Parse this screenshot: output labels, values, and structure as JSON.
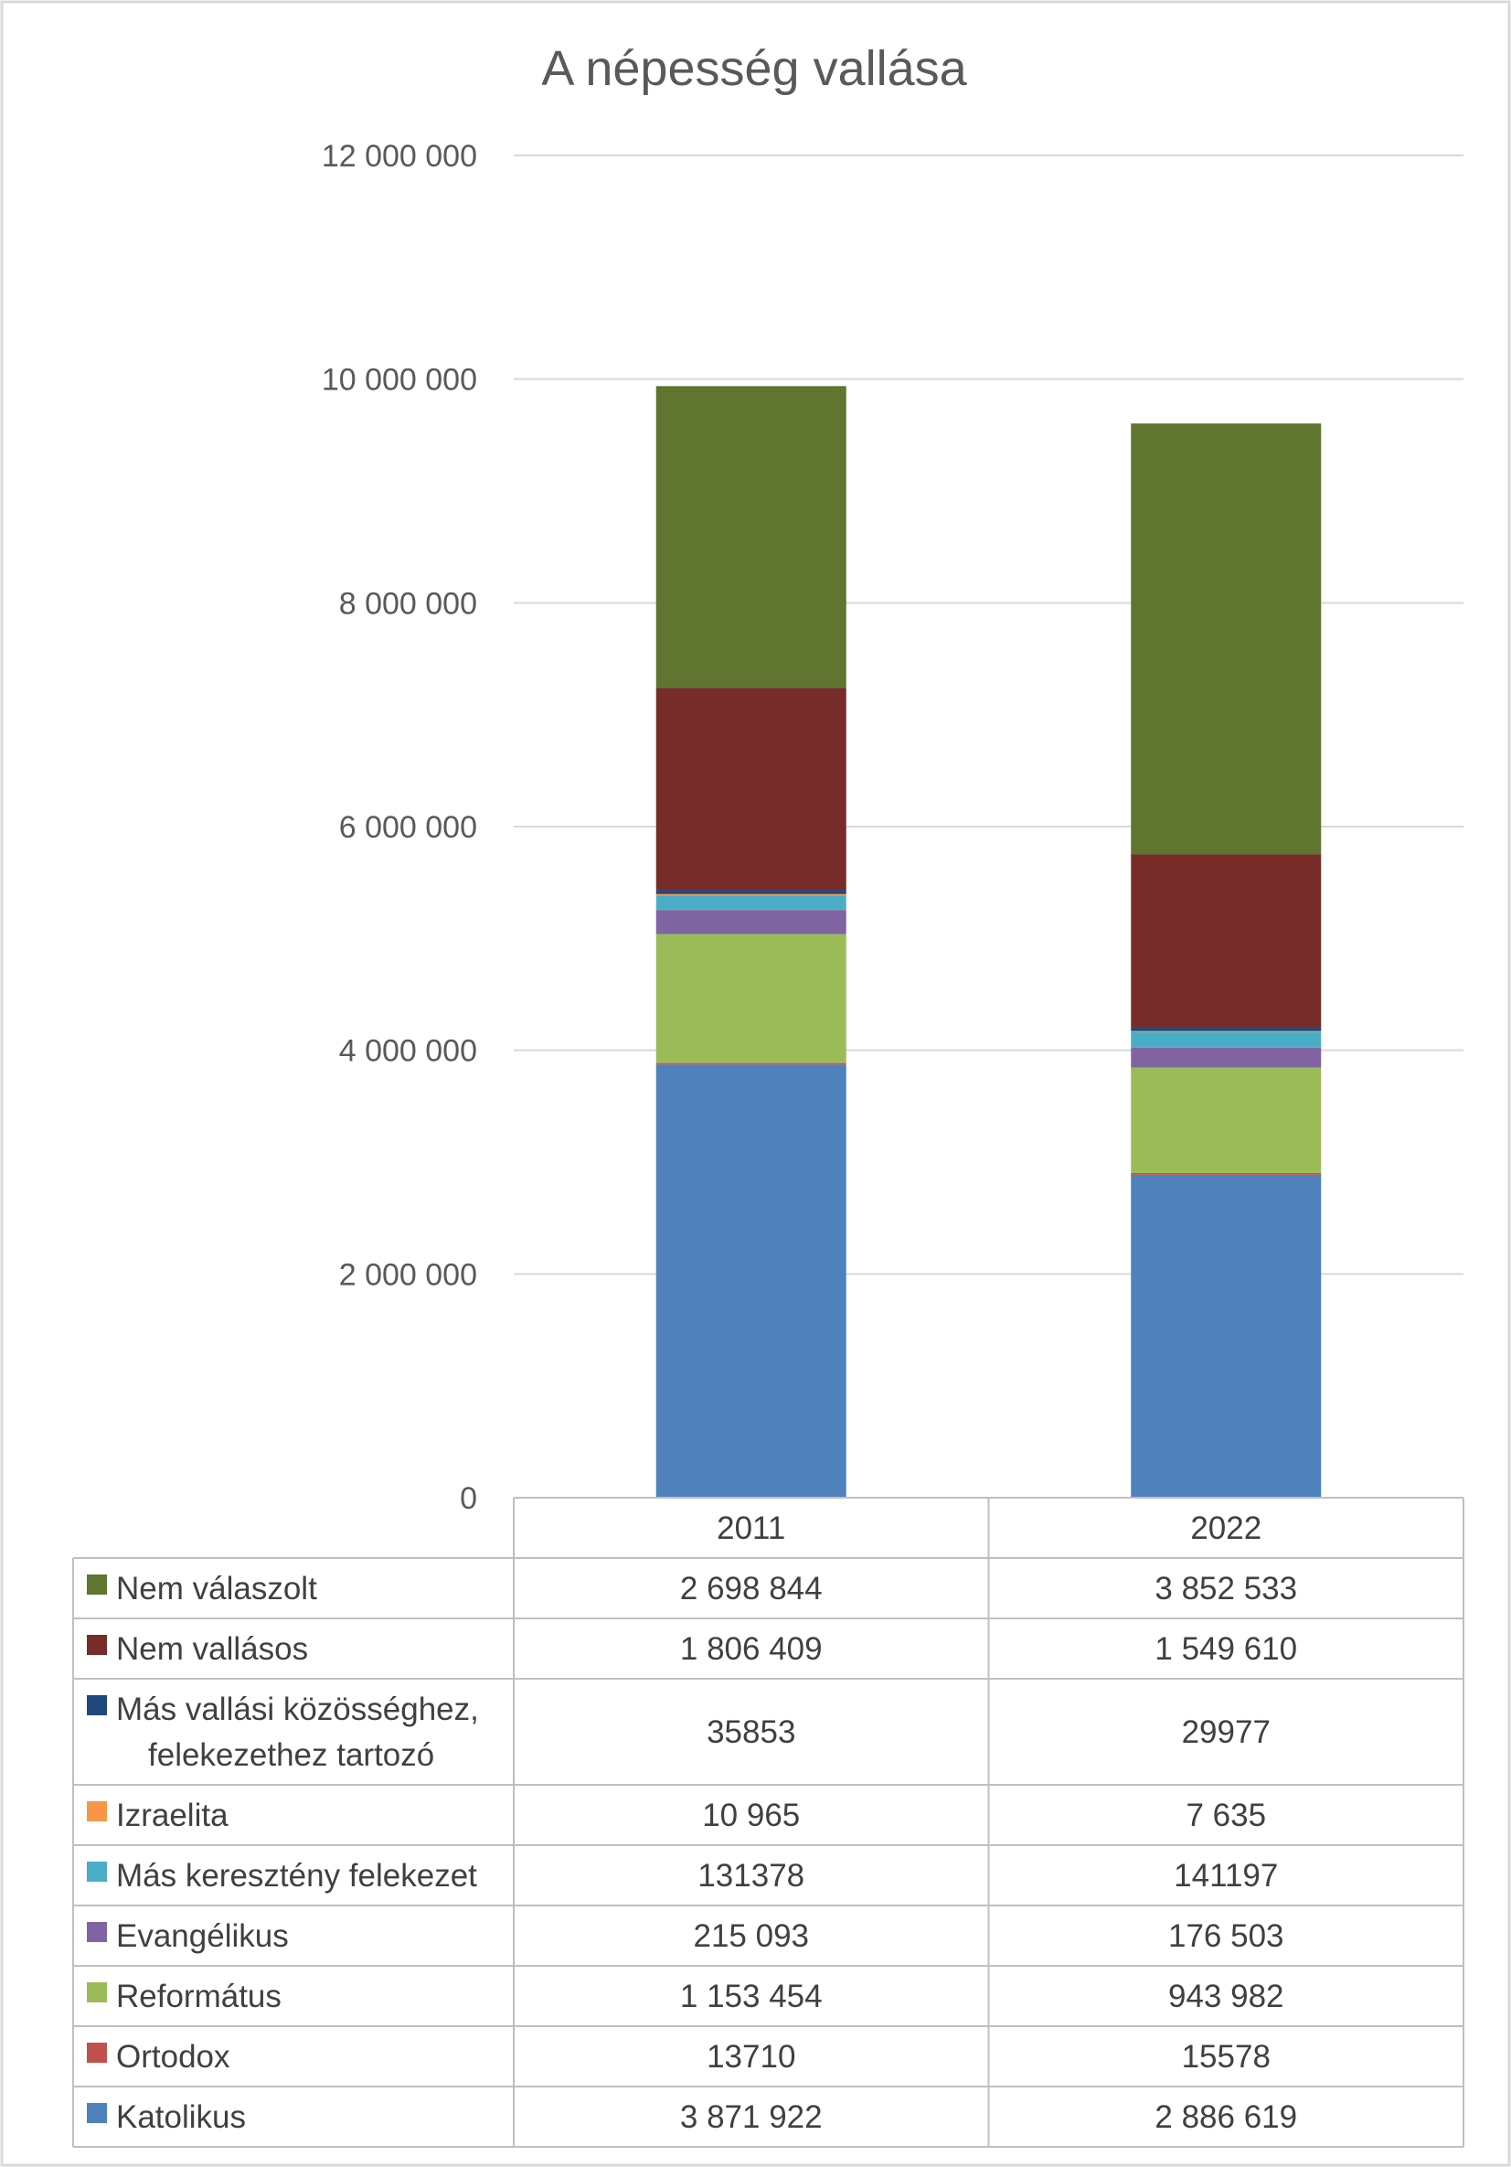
{
  "chart_data": {
    "type": "bar",
    "stacked": true,
    "title": "A népesség vallása",
    "categories": [
      "2011",
      "2022"
    ],
    "ylim": [
      0,
      12000000
    ],
    "y_ticks": [
      {
        "value": 0,
        "label": "0"
      },
      {
        "value": 2000000,
        "label": "2 000 000"
      },
      {
        "value": 4000000,
        "label": "4 000 000"
      },
      {
        "value": 6000000,
        "label": "6 000 000"
      },
      {
        "value": 8000000,
        "label": "8 000 000"
      },
      {
        "value": 10000000,
        "label": "10 000 000"
      },
      {
        "value": 12000000,
        "label": "12 000 000"
      }
    ],
    "grid": true,
    "legend": "data-table",
    "series": [
      {
        "name": "Katolikus",
        "color": "#4f81bd",
        "values": [
          3871922,
          2886619
        ],
        "labels": [
          "3 871 922",
          "2 886 619"
        ]
      },
      {
        "name": "Ortodox",
        "color": "#c0504d",
        "values": [
          13710,
          15578
        ],
        "labels": [
          "13710",
          "15578"
        ]
      },
      {
        "name": "Református",
        "color": "#9bbb59",
        "values": [
          1153454,
          943982
        ],
        "labels": [
          "1 153 454",
          "943 982"
        ]
      },
      {
        "name": "Evangélikus",
        "color": "#8064a2",
        "values": [
          215093,
          176503
        ],
        "labels": [
          "215 093",
          "176 503"
        ]
      },
      {
        "name": "Más keresztény felekezet",
        "color": "#4bacc6",
        "values": [
          131378,
          141197
        ],
        "labels": [
          "131378",
          "141197"
        ]
      },
      {
        "name": "Izraelita",
        "color": "#f79646",
        "values": [
          10965,
          7635
        ],
        "labels": [
          "10 965",
          "7 635"
        ]
      },
      {
        "name": "Más vallási közösséghez, felekezethez tartozó",
        "name_lines": [
          "Más vallási közösséghez,",
          "felekezethez tartozó"
        ],
        "color": "#1f497d",
        "values": [
          35853,
          29977
        ],
        "labels": [
          "35853",
          "29977"
        ]
      },
      {
        "name": "Nem vallásos",
        "color": "#772c2a",
        "values": [
          1806409,
          1549610
        ],
        "labels": [
          "1 806 409",
          "1 549 610"
        ]
      },
      {
        "name": "Nem válaszolt",
        "color": "#5f7530",
        "values": [
          2698844,
          3852533
        ],
        "labels": [
          "2 698 844",
          "3 852 533"
        ]
      }
    ]
  }
}
